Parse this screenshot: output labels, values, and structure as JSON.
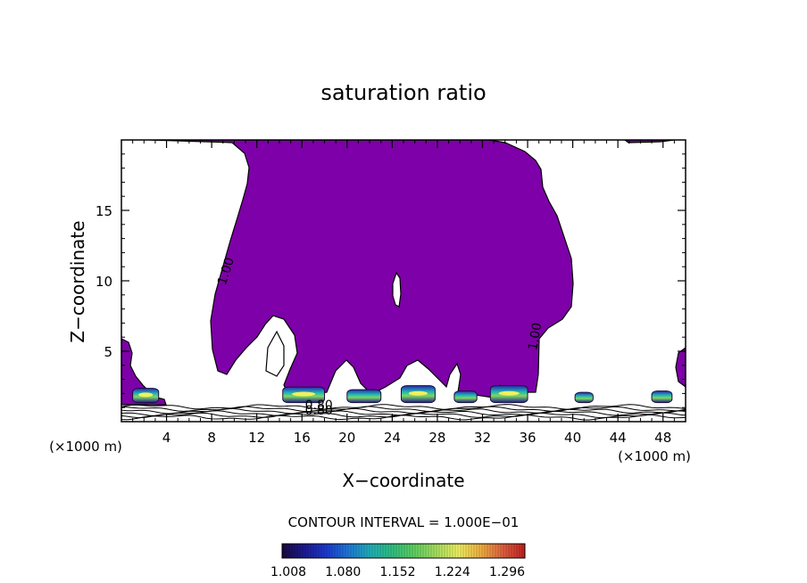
{
  "chart_data": {
    "type": "contour",
    "title": "saturation ratio",
    "xlabel": "X−coordinate",
    "ylabel": "Z−coordinate",
    "x_unit_left": "(×1000 m)",
    "x_unit_right": "(×1000 m)",
    "xlim": [
      0,
      50
    ],
    "ylim": [
      0,
      20
    ],
    "x_ticks": [
      4,
      8,
      12,
      16,
      20,
      24,
      28,
      32,
      36,
      40,
      44,
      48
    ],
    "x_tick_labels": [
      "4",
      "8",
      "12",
      "16",
      "20",
      "24",
      "28",
      "32",
      "36",
      "40",
      "44",
      "48"
    ],
    "y_ticks": [
      5,
      10,
      15
    ],
    "y_tick_labels": [
      "5",
      "10",
      "15"
    ],
    "contour_labels": [
      {
        "text": "1.00",
        "x": 9.6,
        "y": 10.6,
        "rotation": -72
      },
      {
        "text": "1.00",
        "x": 37.0,
        "y": 6.0,
        "rotation": -80
      },
      {
        "text": "0.80",
        "x": 17.5,
        "y": 0.9,
        "rotation": 0
      },
      {
        "text": "0.80",
        "x": 17.5,
        "y": 0.5,
        "rotation": 0
      }
    ],
    "contour_interval_text": "CONTOUR INTERVAL = 1.000E−01",
    "fill_color": "#7e00a8",
    "colorbar": {
      "tick_labels": [
        "1.008",
        "1.080",
        "1.152",
        "1.224",
        "1.296"
      ],
      "colors": [
        "#1a0a40",
        "#1c1a90",
        "#1c3ad0",
        "#1e78d8",
        "#20b0b8",
        "#30c080",
        "#60d060",
        "#a8e060",
        "#f0f060",
        "#f0b040",
        "#e06040",
        "#c02020"
      ]
    },
    "high_cells": [
      {
        "x_start": 1.0,
        "x_end": 3.3,
        "peak": 1.2
      },
      {
        "x_start": 14.3,
        "x_end": 18.0,
        "peak": 1.25
      },
      {
        "x_start": 20.0,
        "x_end": 23.0,
        "peak": 1.15
      },
      {
        "x_start": 24.8,
        "x_end": 27.8,
        "peak": 1.3
      },
      {
        "x_start": 29.5,
        "x_end": 31.5,
        "peak": 1.1
      },
      {
        "x_start": 32.7,
        "x_end": 36.0,
        "peak": 1.3
      },
      {
        "x_start": 40.2,
        "x_end": 41.8,
        "peak": 1.05
      },
      {
        "x_start": 47.0,
        "x_end": 48.8,
        "peak": 1.1
      }
    ]
  }
}
